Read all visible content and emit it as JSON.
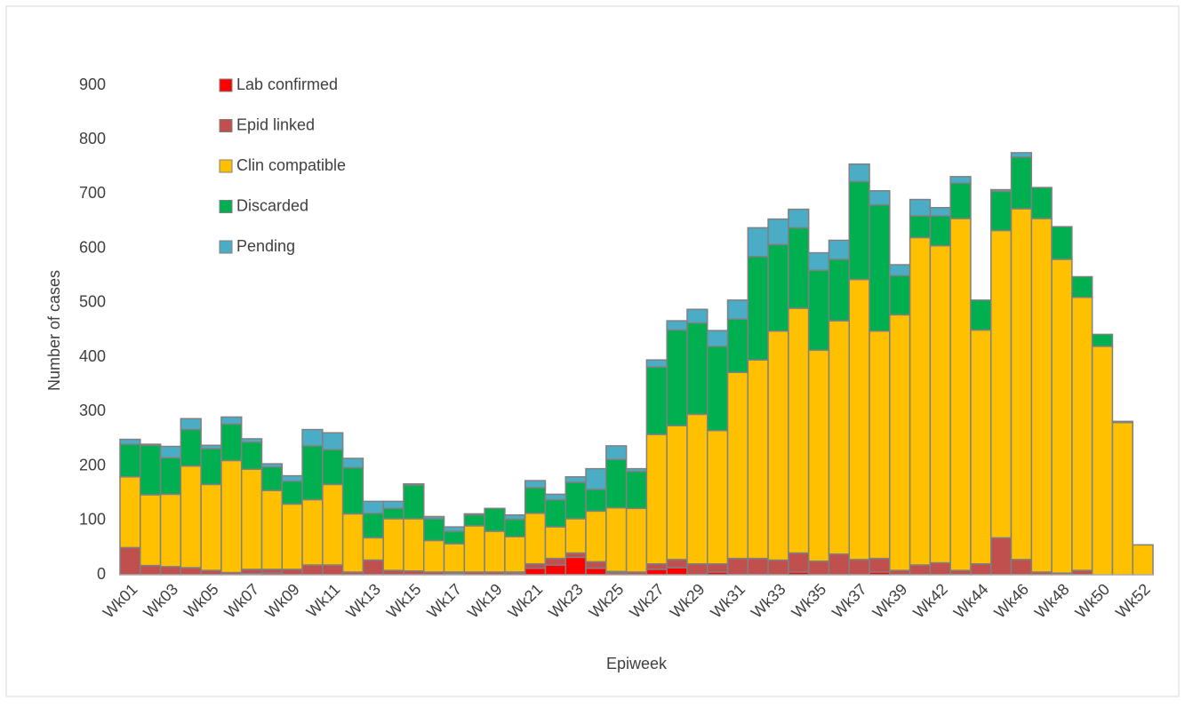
{
  "chart_data": {
    "type": "stacked_bar",
    "x_label": "Epiweek",
    "y_label": "Number of cases",
    "categories": [
      "Wk01",
      null,
      "Wk03",
      null,
      "Wk05",
      null,
      "Wk07",
      null,
      "Wk09",
      null,
      "Wk11",
      null,
      "Wk13",
      null,
      "Wk15",
      null,
      "Wk17",
      null,
      "Wk19",
      null,
      "Wk21",
      null,
      "Wk23",
      null,
      "Wk25",
      null,
      "Wk27",
      null,
      "Wk29",
      null,
      "Wk31",
      null,
      "Wk33",
      null,
      "Wk35",
      null,
      "Wk37",
      null,
      "Wk39",
      null,
      "Wk42",
      null,
      "Wk44",
      null,
      "Wk46",
      null,
      "Wk48",
      null,
      "Wk50",
      null,
      "Wk52"
    ],
    "series": [
      {
        "name": "Lab confirmed",
        "color": "#ff0000",
        "values": [
          0,
          0,
          0,
          0,
          0,
          0,
          2,
          3,
          0,
          0,
          0,
          0,
          0,
          0,
          0,
          0,
          2,
          0,
          0,
          3,
          12,
          18,
          32,
          12,
          3,
          0,
          10,
          13,
          0,
          5,
          0,
          0,
          0,
          5,
          0,
          0,
          0,
          5,
          0,
          0,
          0,
          0,
          0,
          0,
          0,
          0,
          0,
          0,
          0,
          0,
          0
        ]
      },
      {
        "name": "Epid linked",
        "color": "#c0504d",
        "values": [
          50,
          17,
          15,
          13,
          8,
          4,
          8,
          7,
          10,
          18,
          18,
          5,
          27,
          8,
          7,
          5,
          3,
          5,
          5,
          2,
          8,
          12,
          8,
          12,
          3,
          5,
          10,
          15,
          20,
          15,
          30,
          30,
          27,
          35,
          25,
          38,
          28,
          25,
          8,
          18,
          22,
          8,
          20,
          68,
          28,
          5,
          3,
          8,
          0,
          0,
          0
        ]
      },
      {
        "name": "Clin compatible",
        "color": "#ffc000",
        "values": [
          130,
          130,
          133,
          187,
          158,
          206,
          184,
          145,
          120,
          120,
          148,
          107,
          41,
          95,
          96,
          58,
          52,
          85,
          75,
          65,
          93,
          58,
          63,
          93,
          117,
          117,
          238,
          246,
          275,
          245,
          342,
          365,
          421,
          450,
          388,
          429,
          515,
          418,
          470,
          602,
          583,
          647,
          430,
          565,
          645,
          650,
          577,
          502,
          420,
          280,
          55
        ]
      },
      {
        "name": "Discarded",
        "color": "#00b050",
        "values": [
          60,
          91,
          67,
          67,
          66,
          67,
          50,
          43,
          42,
          99,
          64,
          85,
          45,
          19,
          62,
          40,
          23,
          20,
          42,
          32,
          47,
          50,
          67,
          40,
          89,
          68,
          124,
          176,
          168,
          155,
          98,
          190,
          159,
          148,
          147,
          113,
          180,
          232,
          72,
          40,
          55,
          65,
          55,
          72,
          95,
          57,
          60,
          38,
          22,
          0,
          0
        ]
      },
      {
        "name": "Pending",
        "color": "#4bacc6",
        "values": [
          9,
          2,
          21,
          20,
          6,
          13,
          6,
          6,
          10,
          30,
          31,
          17,
          22,
          13,
          2,
          4,
          8,
          2,
          0,
          8,
          13,
          10,
          10,
          38,
          25,
          5,
          13,
          17,
          25,
          29,
          35,
          53,
          47,
          34,
          32,
          35,
          32,
          26,
          20,
          30,
          15,
          12,
          0,
          3,
          8,
          0,
          0,
          0,
          0,
          2,
          0
        ]
      }
    ],
    "ylim": [
      0,
      900
    ],
    "yticks": [
      0,
      100,
      200,
      300,
      400,
      500,
      600,
      700,
      800,
      900
    ],
    "grid": false,
    "legend": "top-left"
  }
}
